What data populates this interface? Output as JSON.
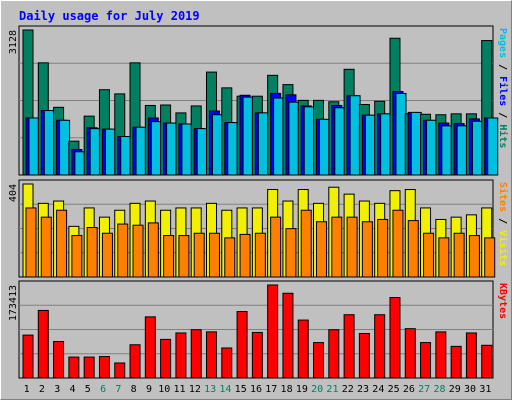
{
  "chart_data": [
    {
      "type": "bar",
      "title": "Daily usage for July 2019",
      "panel": "top",
      "ylabel_parts": [
        "Pages",
        "Files",
        "Hits"
      ],
      "ylabel_colors": [
        "#00c0e0",
        "#0000ff",
        "#008060"
      ],
      "ymax_label": "3128",
      "ylim": [
        0,
        3128
      ],
      "categories": [
        "1",
        "2",
        "3",
        "4",
        "5",
        "6",
        "7",
        "8",
        "9",
        "10",
        "11",
        "12",
        "13",
        "14",
        "15",
        "16",
        "17",
        "18",
        "19",
        "20",
        "21",
        "22",
        "23",
        "24",
        "25",
        "26",
        "27",
        "28",
        "29",
        "30",
        "31"
      ],
      "series": [
        {
          "name": "Hits",
          "color": "#008060",
          "values": [
            3128,
            2420,
            1460,
            730,
            1270,
            1840,
            1750,
            2420,
            1500,
            1510,
            1340,
            1490,
            2220,
            1880,
            1700,
            1700,
            2150,
            1950,
            1610,
            1610,
            1580,
            2280,
            1520,
            1590,
            2950,
            1320,
            1310,
            1300,
            1320,
            1320,
            2900
          ]
        },
        {
          "name": "Files",
          "color": "#0000ff",
          "values": [
            1230,
            1390,
            1180,
            550,
            1020,
            990,
            830,
            1030,
            1230,
            1120,
            1100,
            1000,
            1380,
            1130,
            1720,
            1340,
            1760,
            1730,
            1490,
            1200,
            1500,
            1710,
            1290,
            1320,
            1800,
            1350,
            1180,
            1120,
            1110,
            1210,
            1230
          ]
        },
        {
          "name": "Pages",
          "color": "#00c0e0",
          "values": [
            1230,
            1390,
            1180,
            500,
            1000,
            990,
            830,
            1030,
            1150,
            1120,
            1100,
            1000,
            1300,
            1130,
            1680,
            1340,
            1660,
            1570,
            1470,
            1200,
            1450,
            1710,
            1290,
            1320,
            1760,
            1350,
            1180,
            1060,
            1060,
            1160,
            1230
          ]
        }
      ]
    },
    {
      "type": "bar",
      "panel": "middle",
      "ylabel_parts": [
        "Sites",
        "Visits"
      ],
      "ylabel_colors": [
        "#ff8000",
        "#f0f000"
      ],
      "ymax_label": "404",
      "ylim": [
        0,
        404
      ],
      "categories": [
        "1",
        "2",
        "3",
        "4",
        "5",
        "6",
        "7",
        "8",
        "9",
        "10",
        "11",
        "12",
        "13",
        "14",
        "15",
        "16",
        "17",
        "18",
        "19",
        "20",
        "21",
        "22",
        "23",
        "24",
        "25",
        "26",
        "27",
        "28",
        "29",
        "30",
        "31"
      ],
      "series": [
        {
          "name": "Visits",
          "color": "#f0f000",
          "values": [
            404,
            320,
            330,
            220,
            300,
            260,
            290,
            320,
            330,
            290,
            300,
            300,
            320,
            290,
            300,
            300,
            380,
            330,
            380,
            320,
            390,
            360,
            330,
            320,
            375,
            380,
            300,
            250,
            260,
            270,
            300
          ]
        },
        {
          "name": "Sites",
          "color": "#ff8000",
          "values": [
            300,
            260,
            290,
            180,
            215,
            190,
            230,
            225,
            235,
            180,
            180,
            190,
            190,
            170,
            185,
            190,
            260,
            210,
            290,
            240,
            260,
            260,
            240,
            250,
            290,
            245,
            190,
            170,
            190,
            180,
            170
          ]
        }
      ]
    },
    {
      "type": "bar",
      "panel": "bottom",
      "ylabel_parts": [
        "KBytes"
      ],
      "ylabel_colors": [
        "#ff0000"
      ],
      "ymax_label": "173413",
      "ylim": [
        0,
        173413
      ],
      "categories": [
        "1",
        "2",
        "3",
        "4",
        "5",
        "6",
        "7",
        "8",
        "9",
        "10",
        "11",
        "12",
        "13",
        "14",
        "15",
        "16",
        "17",
        "18",
        "19",
        "20",
        "21",
        "22",
        "23",
        "24",
        "25",
        "26",
        "27",
        "28",
        "29",
        "30",
        "31"
      ],
      "weekend_days": [
        "6",
        "7",
        "13",
        "14",
        "20",
        "21",
        "27",
        "28"
      ],
      "series": [
        {
          "name": "KBytes",
          "color": "#ff0000",
          "values": [
            80000,
            126000,
            68000,
            39000,
            39000,
            40000,
            28000,
            62000,
            114000,
            72000,
            84000,
            90000,
            86000,
            56000,
            124000,
            85000,
            173413,
            158000,
            108000,
            66000,
            90000,
            118000,
            83000,
            118000,
            150000,
            92000,
            66000,
            86000,
            59000,
            84000,
            61000
          ]
        }
      ]
    }
  ]
}
